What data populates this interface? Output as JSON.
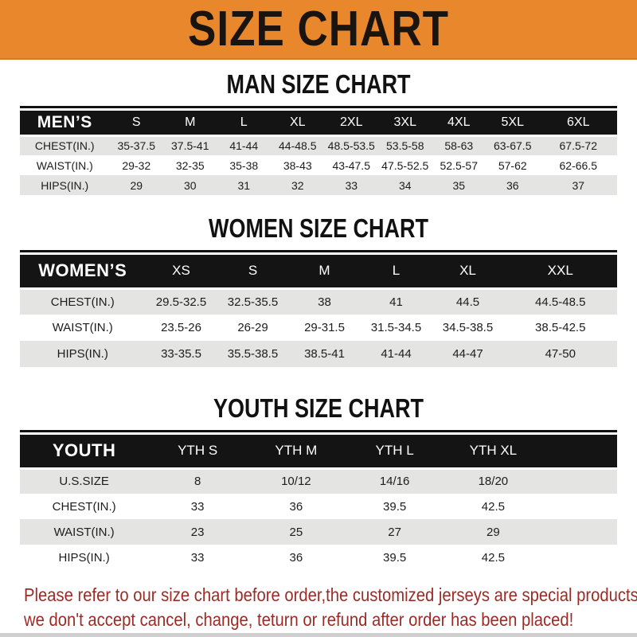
{
  "banner": {
    "title": "SIZE CHART",
    "bg_color": "#E8872B"
  },
  "sections": [
    {
      "heading": "MAN SIZE CHART",
      "table": {
        "header": [
          "MEN’S",
          "S",
          "M",
          "L",
          "XL",
          "2XL",
          "3XL",
          "4XL",
          "5XL",
          "6XL"
        ],
        "rows": [
          {
            "label": "CHEST(IN.)",
            "values": [
              "35-37.5",
              "37.5-41",
              "41-44",
              "44-48.5",
              "48.5-53.5",
              "53.5-58",
              "58-63",
              "63-67.5",
              "67.5-72"
            ]
          },
          {
            "label": "WAIST(IN.)",
            "values": [
              "29-32",
              "32-35",
              "35-38",
              "38-43",
              "43-47.5",
              "47.5-52.5",
              "52.5-57",
              "57-62",
              "62-66.5"
            ]
          },
          {
            "label": "HIPS(IN.)",
            "values": [
              "29",
              "30",
              "31",
              "32",
              "33",
              "34",
              "35",
              "36",
              "37"
            ]
          }
        ]
      }
    },
    {
      "heading": "WOMEN SIZE CHART",
      "table": {
        "header": [
          "WOMEN’S",
          "XS",
          "S",
          "M",
          "L",
          "XL",
          "XXL"
        ],
        "rows": [
          {
            "label": "CHEST(IN.)",
            "values": [
              "29.5-32.5",
              "32.5-35.5",
              "38",
              "41",
              "44.5",
              "44.5-48.5"
            ]
          },
          {
            "label": "WAIST(IN.)",
            "values": [
              "23.5-26",
              "26-29",
              "29-31.5",
              "31.5-34.5",
              "34.5-38.5",
              "38.5-42.5"
            ]
          },
          {
            "label": "HIPS(IN.)",
            "values": [
              "33-35.5",
              "35.5-38.5",
              "38.5-41",
              "41-44",
              "44-47",
              "47-50"
            ]
          }
        ]
      }
    },
    {
      "heading": "YOUTH SIZE CHART",
      "table": {
        "header": [
          "YOUTH",
          "YTH S",
          "YTH M",
          "YTH L",
          "YTH XL"
        ],
        "rows": [
          {
            "label": "U.S.SIZE",
            "values": [
              "8",
              "10/12",
              "14/16",
              "18/20"
            ]
          },
          {
            "label": "CHEST(IN.)",
            "values": [
              "33",
              "36",
              "39.5",
              "42.5"
            ]
          },
          {
            "label": "WAIST(IN.)",
            "values": [
              "23",
              "25",
              "27",
              "29"
            ]
          },
          {
            "label": "HIPS(IN.)",
            "values": [
              "33",
              "36",
              "39.5",
              "42.5"
            ]
          }
        ]
      }
    }
  ],
  "footer": {
    "lines": [
      "Please refer to our size chart before order,the customized jerseys are special products,",
      "we don't accept cancel, change, teturn or refund after order has been placed!"
    ],
    "text_color": "#9C2B26"
  },
  "colors": {
    "banner_orange": "#E8872B",
    "band_black": "#141414",
    "row_gray": "#E4E4E2",
    "note_red": "#9C2B26"
  }
}
